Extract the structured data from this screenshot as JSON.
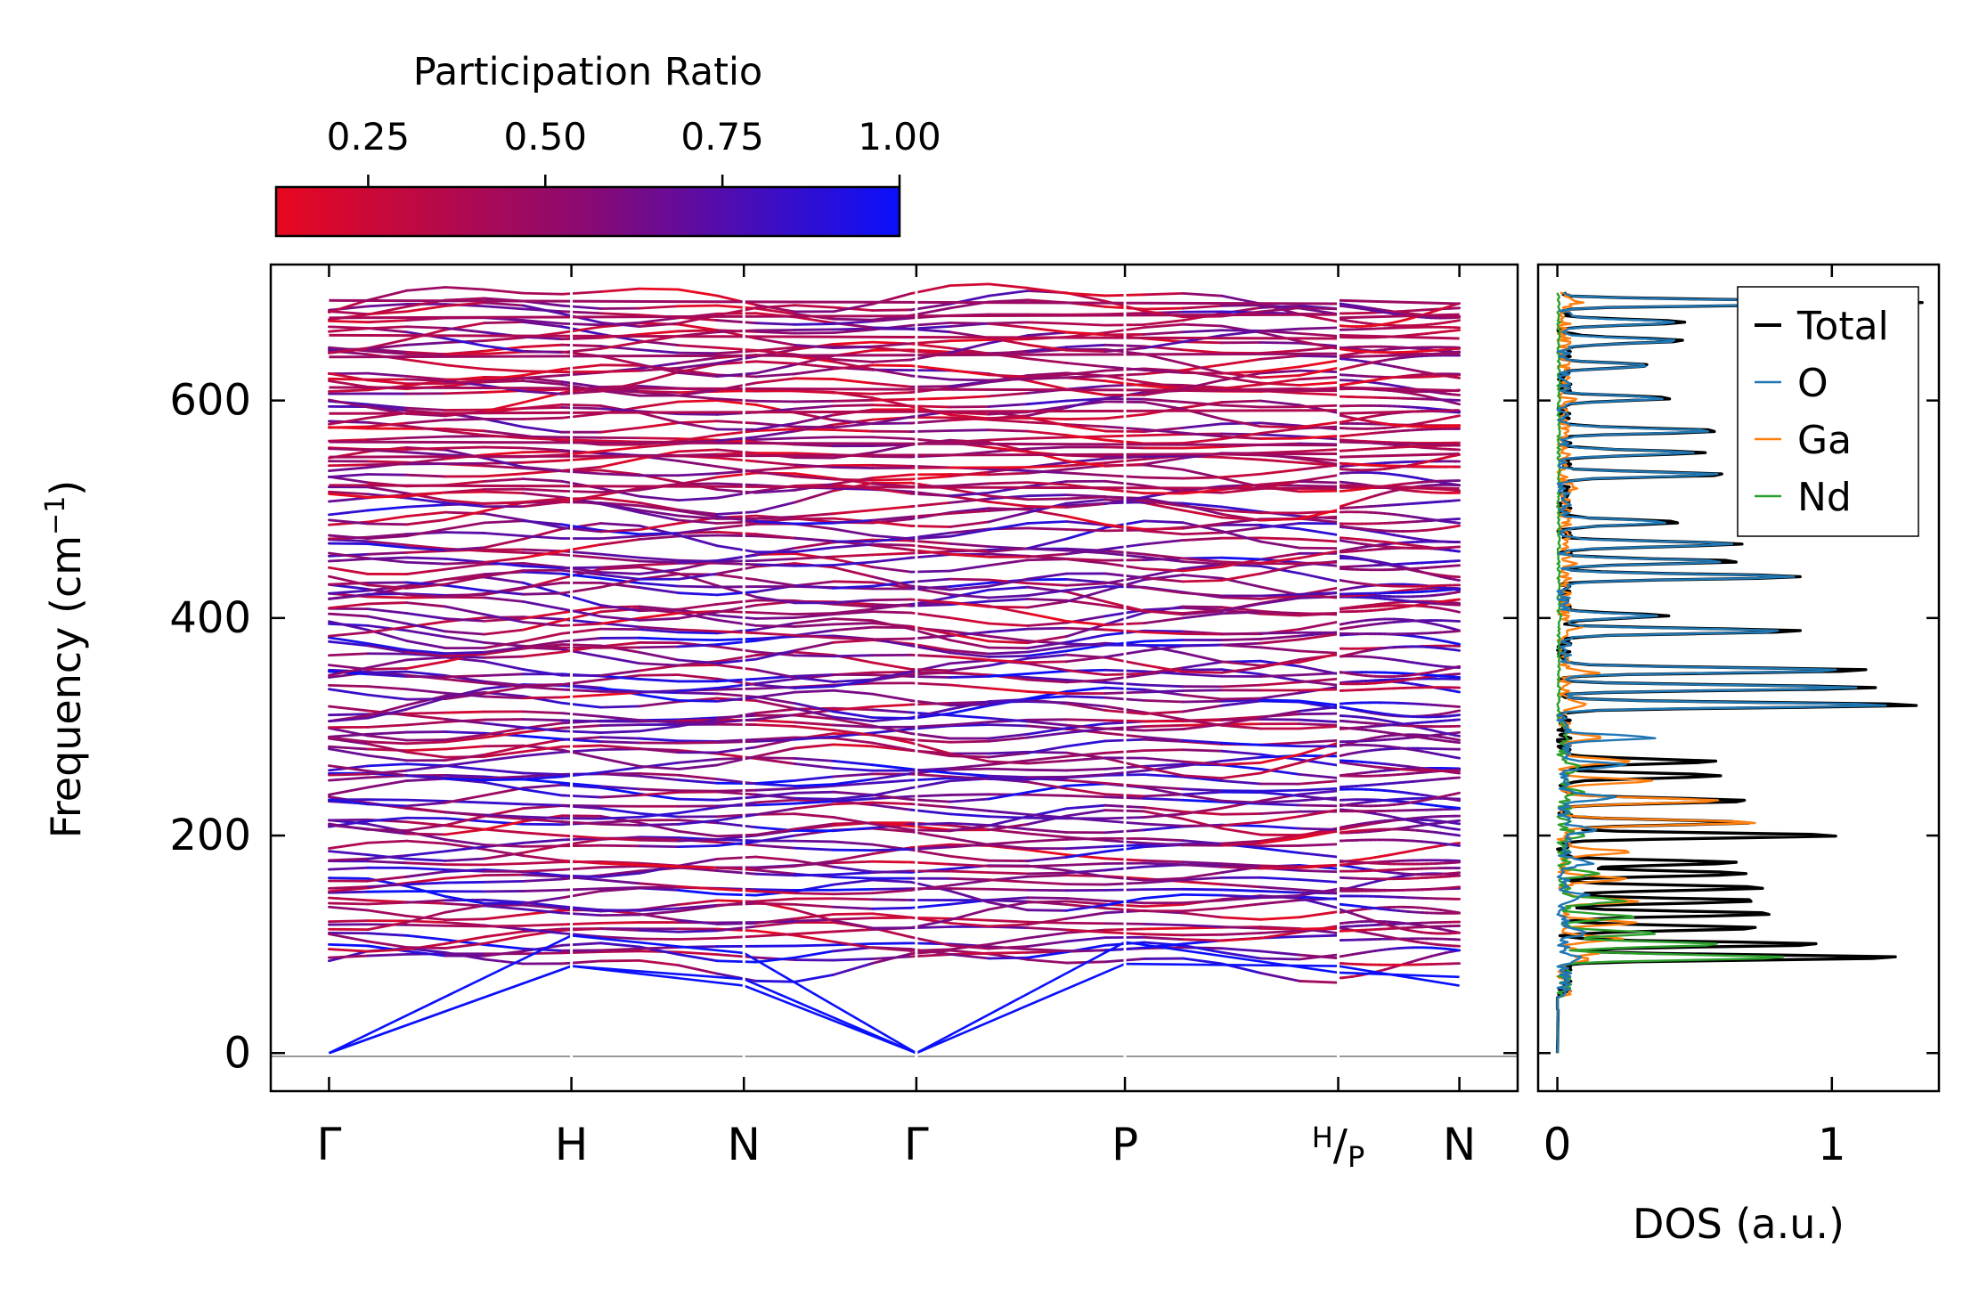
{
  "colorbar": {
    "title": "Participation Ratio",
    "ticks": [
      0.25,
      0.5,
      0.75,
      1.0
    ],
    "tick_labels": [
      "0.25",
      "0.50",
      "0.75",
      "1.00"
    ],
    "range": [
      0.12,
      1.0
    ],
    "color_low": "#e8081f",
    "color_mid": "#8a0a72",
    "color_high": "#0a10fb"
  },
  "chart_data": [
    {
      "type": "line",
      "name": "phonon-dispersion",
      "ylabel": "Frequency (cm",
      "ylabel_sup": "−1",
      "ylabel_tail": ")",
      "ylim": [
        -35,
        725
      ],
      "yticks": [
        0,
        200,
        400,
        600
      ],
      "ytick_labels": [
        "0",
        "200",
        "400",
        "600"
      ],
      "path_positions": [
        0,
        2.08,
        3.56,
        5.04,
        6.83,
        8.66,
        9.7
      ],
      "path_range": [
        -0.5,
        10.2
      ],
      "xtick_labels": [
        "Γ",
        "H",
        "N",
        "Γ",
        "P",
        "H/P",
        "N"
      ],
      "hp_label": {
        "left": "H",
        "sep": "/",
        "right": "P"
      },
      "segment_break": 8.66,
      "acoustic_branches": [
        {
          "x": [
            0,
            2.08,
            3.56,
            5.04
          ],
          "y": [
            0,
            80,
            68,
            0
          ]
        },
        {
          "x": [
            0,
            2.08,
            3.56,
            5.04
          ],
          "y": [
            0,
            80,
            62,
            0
          ]
        },
        {
          "x": [
            0,
            2.08,
            3.56,
            5.04
          ],
          "y": [
            0,
            108,
            92,
            0
          ]
        },
        {
          "x": [
            5.04,
            6.83,
            8.66
          ],
          "y": [
            0,
            82,
            80
          ]
        },
        {
          "x": [
            5.04,
            6.83,
            8.66
          ],
          "y": [
            0,
            102,
            74
          ]
        },
        {
          "x": [
            8.66,
            9.7
          ],
          "y": [
            80,
            62
          ]
        },
        {
          "x": [
            8.66,
            9.7
          ],
          "y": [
            74,
            70
          ]
        }
      ],
      "optical_band_count": 120,
      "optical_range": [
        84,
        692
      ],
      "high_frequency_flat_bands": [
        522,
        548,
        562,
        588,
        612,
        640,
        660,
        676,
        692
      ]
    },
    {
      "type": "line",
      "name": "density-of-states",
      "xlabel": "DOS (a.u.)",
      "xlim": [
        -0.07,
        1.39
      ],
      "xticks": [
        0,
        1
      ],
      "xtick_labels": [
        "0",
        "1"
      ],
      "ylim": [
        -35,
        725
      ],
      "series": [
        {
          "name": "Total",
          "color": "#000000",
          "peaks": [
            [
              88,
              1.24
            ],
            [
              100,
              0.92
            ],
            [
              115,
              0.72
            ],
            [
              128,
              0.78
            ],
            [
              140,
              0.72
            ],
            [
              152,
              0.74
            ],
            [
              165,
              0.68
            ],
            [
              175,
              0.62
            ],
            [
              200,
              1.0
            ],
            [
              212,
              0.68
            ],
            [
              232,
              0.68
            ],
            [
              255,
              0.58
            ],
            [
              268,
              0.56
            ],
            [
              320,
              1.3
            ],
            [
              336,
              1.15
            ],
            [
              352,
              1.12
            ],
            [
              388,
              0.86
            ],
            [
              402,
              0.36
            ],
            [
              438,
              0.86
            ],
            [
              452,
              0.62
            ],
            [
              468,
              0.66
            ],
            [
              488,
              0.42
            ],
            [
              532,
              0.58
            ],
            [
              552,
              0.5
            ],
            [
              572,
              0.56
            ],
            [
              602,
              0.38
            ],
            [
              632,
              0.32
            ],
            [
              655,
              0.46
            ],
            [
              672,
              0.44
            ],
            [
              690,
              1.32
            ]
          ]
        },
        {
          "name": "O",
          "color": "#1f77b4",
          "peaks": [
            [
              88,
              0.05
            ],
            [
              110,
              0.08
            ],
            [
              145,
              0.08
            ],
            [
              175,
              0.1
            ],
            [
              205,
              0.14
            ],
            [
              235,
              0.18
            ],
            [
              265,
              0.22
            ],
            [
              290,
              0.32
            ],
            [
              320,
              1.18
            ],
            [
              336,
              1.05
            ],
            [
              352,
              1.02
            ],
            [
              388,
              0.82
            ],
            [
              402,
              0.32
            ],
            [
              438,
              0.82
            ],
            [
              452,
              0.58
            ],
            [
              468,
              0.62
            ],
            [
              488,
              0.38
            ],
            [
              532,
              0.55
            ],
            [
              552,
              0.47
            ],
            [
              572,
              0.53
            ],
            [
              602,
              0.35
            ],
            [
              632,
              0.3
            ],
            [
              655,
              0.43
            ],
            [
              672,
              0.41
            ],
            [
              690,
              1.25
            ]
          ]
        },
        {
          "name": "Ga",
          "color": "#ff7f0e",
          "peaks": [
            [
              85,
              0.08
            ],
            [
              92,
              0.12
            ],
            [
              105,
              0.2
            ],
            [
              120,
              0.24
            ],
            [
              140,
              0.26
            ],
            [
              160,
              0.22
            ],
            [
              185,
              0.24
            ],
            [
              212,
              0.7
            ],
            [
              232,
              0.58
            ],
            [
              250,
              0.32
            ],
            [
              268,
              0.22
            ],
            [
              290,
              0.12
            ],
            [
              320,
              0.1
            ],
            [
              350,
              0.11
            ],
            [
              392,
              0.08
            ],
            [
              450,
              0.05
            ],
            [
              520,
              0.04
            ],
            [
              600,
              0.03
            ],
            [
              690,
              0.05
            ]
          ]
        },
        {
          "name": "Nd",
          "color": "#2ca02c",
          "peaks": [
            [
              88,
              0.82
            ],
            [
              100,
              0.58
            ],
            [
              110,
              0.32
            ],
            [
              125,
              0.25
            ],
            [
              140,
              0.22
            ],
            [
              165,
              0.12
            ],
            [
              200,
              0.08
            ],
            [
              240,
              0.05
            ],
            [
              262,
              0.06
            ],
            [
              300,
              0.02
            ],
            [
              400,
              0.01
            ]
          ]
        }
      ],
      "legend": {
        "location": "top-right",
        "entries": [
          "Total",
          "O",
          "Ga",
          "Nd"
        ]
      }
    }
  ]
}
